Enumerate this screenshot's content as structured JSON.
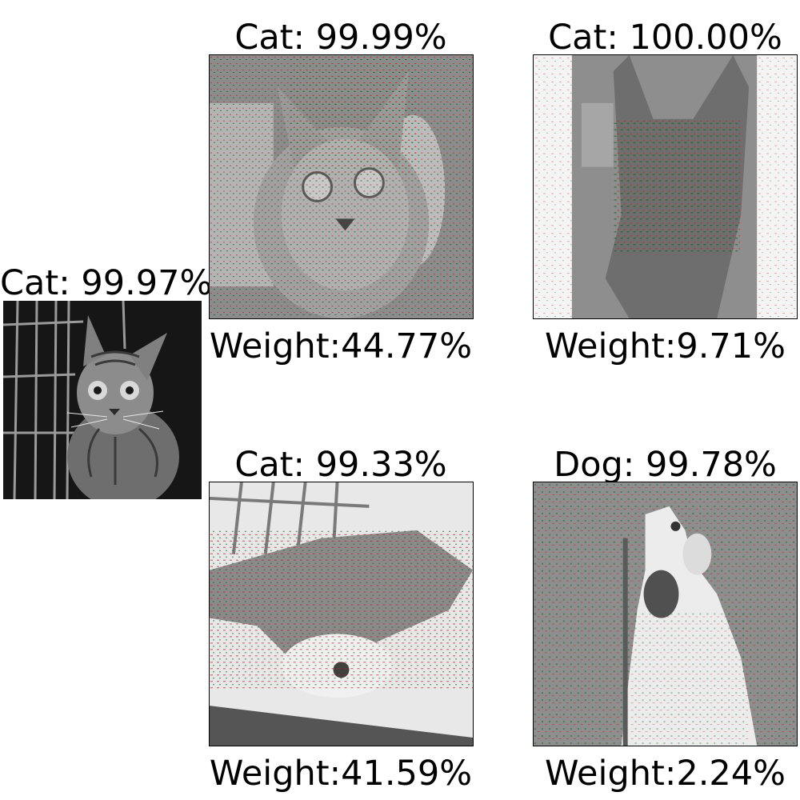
{
  "query": {
    "title": "Cat: 99.97%",
    "image": "tabby-cat-in-cage-photo"
  },
  "examples": [
    {
      "title": "Cat: 99.99%",
      "weight": "Weight:44.77%",
      "image": "cat-face-saliency-map"
    },
    {
      "title": "Cat: 100.00%",
      "weight": "Weight:9.71%",
      "image": "standing-cat-saliency-map"
    },
    {
      "title": "Cat: 99.33%",
      "weight": "Weight:41.59%",
      "image": "lying-cat-saliency-map"
    },
    {
      "title": "Dog: 99.78%",
      "weight": "Weight:2.24%",
      "image": "howling-dog-saliency-map"
    }
  ],
  "colors": {
    "positive": "#0b6b1f",
    "negative": "#c81e1e",
    "gray": "#8a8a8a"
  }
}
